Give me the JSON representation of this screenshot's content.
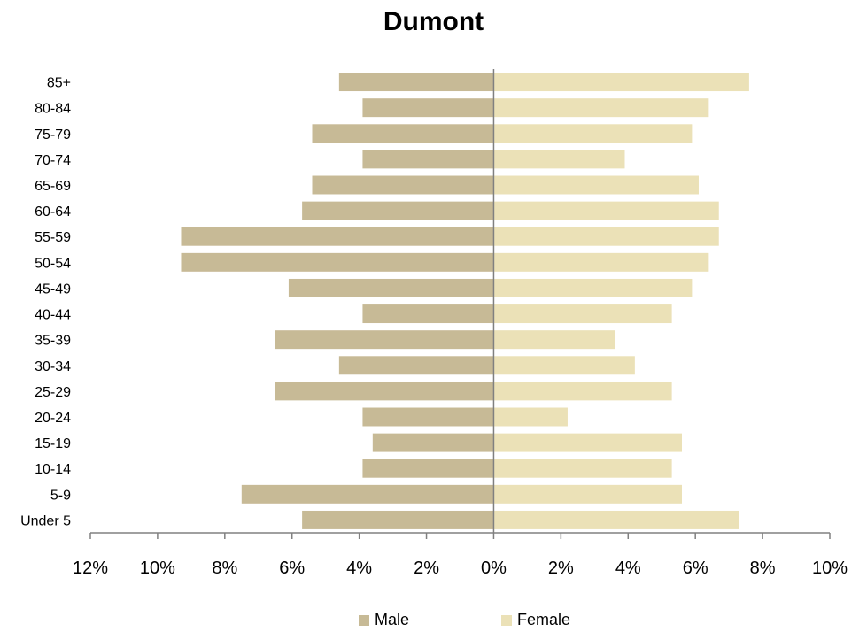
{
  "chart_data": {
    "type": "bar",
    "orientation": "horizontal-pyramid",
    "title": "Dumont",
    "categories": [
      "Under 5",
      "5-9",
      "10-14",
      "15-19",
      "20-24",
      "25-29",
      "30-34",
      "35-39",
      "40-44",
      "45-49",
      "50-54",
      "55-59",
      "60-64",
      "65-69",
      "70-74",
      "75-79",
      "80-84",
      "85+"
    ],
    "series": [
      {
        "name": "Male",
        "color": "#c7ba96",
        "values": [
          5.7,
          7.5,
          3.9,
          3.6,
          3.9,
          6.5,
          4.6,
          6.5,
          3.9,
          6.1,
          9.3,
          9.3,
          5.7,
          5.4,
          3.9,
          5.4,
          3.9,
          4.6
        ]
      },
      {
        "name": "Female",
        "color": "#ebe1b7",
        "values": [
          7.3,
          5.6,
          5.3,
          5.6,
          2.2,
          5.3,
          4.2,
          3.6,
          5.3,
          5.9,
          6.4,
          6.7,
          6.7,
          6.1,
          3.9,
          5.9,
          6.4,
          7.6
        ]
      }
    ],
    "x_ticks": [
      "12%",
      "10%",
      "8%",
      "6%",
      "4%",
      "2%",
      "0%",
      "2%",
      "4%",
      "6%",
      "8%",
      "10%"
    ],
    "xlim": [
      -12,
      10
    ],
    "legend_position": "bottom",
    "grid": false
  }
}
